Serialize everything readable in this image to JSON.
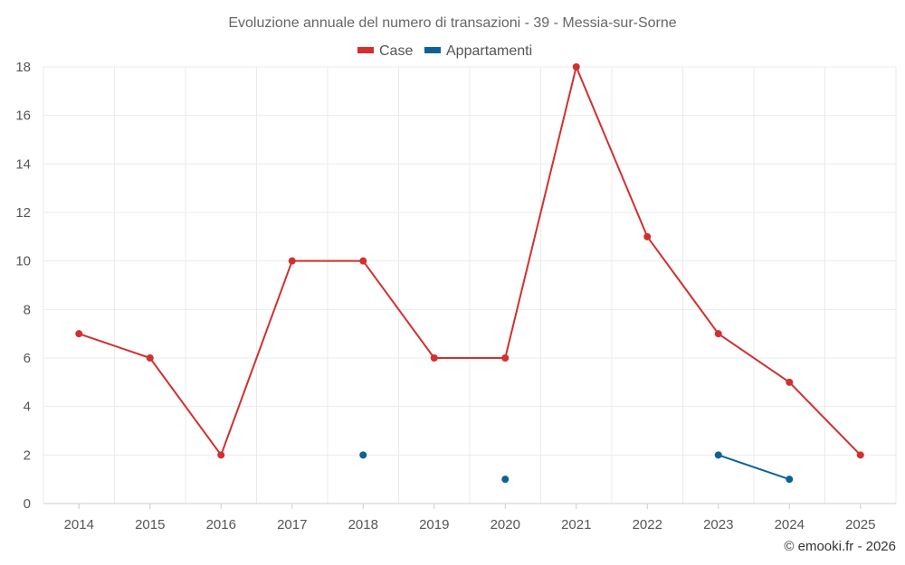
{
  "chart_data": {
    "type": "line",
    "title": "Evoluzione annuale del numero di transazioni - 39 - Messia-sur-Sorne",
    "categories": [
      "2014",
      "2015",
      "2016",
      "2017",
      "2018",
      "2019",
      "2020",
      "2021",
      "2022",
      "2023",
      "2024",
      "2025"
    ],
    "ylim": [
      0,
      18
    ],
    "yticks": [
      "0",
      "2",
      "4",
      "6",
      "8",
      "10",
      "12",
      "14",
      "16",
      "18"
    ],
    "grid": true,
    "legend_position": "top-center",
    "series": [
      {
        "name": "Case",
        "color": "#d32f2f",
        "values": [
          7,
          6,
          2,
          10,
          10,
          6,
          6,
          18,
          11,
          7,
          5,
          2
        ]
      },
      {
        "name": "Appartamenti",
        "color": "#0d6199",
        "values": [
          null,
          null,
          null,
          null,
          2,
          null,
          1,
          null,
          null,
          2,
          1,
          null
        ]
      }
    ]
  },
  "credit": "© emooki.fr - 2026"
}
